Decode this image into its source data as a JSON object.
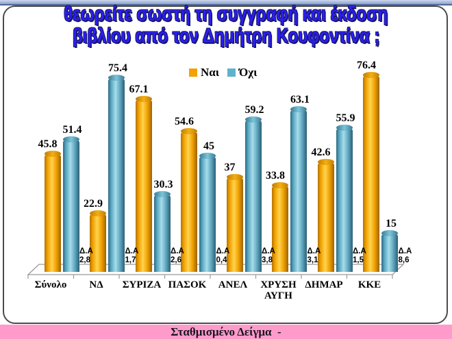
{
  "title": {
    "line1": "θεωρείτε σωστή τη συγγραφή και έκδοση",
    "line2": "βιβλίου από τον Δημήτρη Κουφοντίνα ;"
  },
  "legend": [
    {
      "label": "Ναι",
      "color": "#F2A202"
    },
    {
      "label": "Όχι",
      "color": "#5FB2CC"
    }
  ],
  "footer": {
    "text": "Σταθμισμένο Δείγμα  -"
  },
  "colors": {
    "title_blue": "#2b1ef2",
    "yes_orange": "#F2A202",
    "no_blue": "#5FB2CC",
    "footer_pink": "#ff9bca"
  },
  "chart_data": {
    "type": "bar",
    "title": "θεωρείτε σωστή τη συγγραφή και έκδοση βιβλίου από τον Δημήτρη Κουφοντίνα ;",
    "categories": [
      "Σύνολο",
      "ΝΔ",
      "ΣΥΡΙΖΑ",
      "ΠΑΣΟΚ",
      "ΑΝΕΛ",
      "ΧΡΥΣΗ ΑΥΓΗ",
      "ΔΗΜΑΡ",
      "ΚΚΕ"
    ],
    "series": [
      {
        "name": "Ναι",
        "color": "#F2A202",
        "values": [
          45.8,
          22.9,
          67.1,
          54.6,
          37,
          33.8,
          42.6,
          76.4
        ]
      },
      {
        "name": "Όχι",
        "color": "#5FB2CC",
        "values": [
          51.4,
          75.4,
          30.3,
          45,
          59.2,
          63.1,
          55.9,
          15
        ]
      }
    ],
    "dont_know": {
      "label": "Δ.Α",
      "values": [
        "2,8",
        "1,7",
        "2,6",
        "0,4",
        "3,8",
        "3,1",
        "1,5",
        "8,6"
      ]
    },
    "xlabel": "",
    "ylabel": "",
    "ylim": [
      0,
      80
    ],
    "grid": false,
    "legend_position": "top",
    "style": "3d-cylinder"
  }
}
